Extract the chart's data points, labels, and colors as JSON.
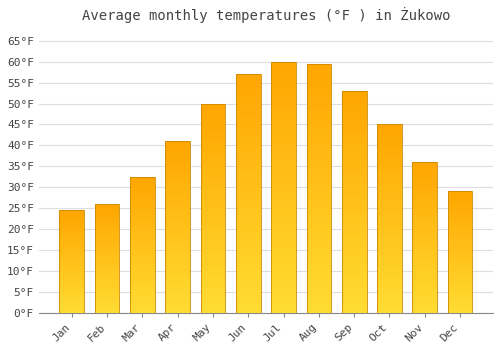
{
  "title": "Average monthly temperatures (°F ) in Żukowo",
  "months": [
    "Jan",
    "Feb",
    "Mar",
    "Apr",
    "May",
    "Jun",
    "Jul",
    "Aug",
    "Sep",
    "Oct",
    "Nov",
    "Dec"
  ],
  "values": [
    24.5,
    26.0,
    32.5,
    41.0,
    50.0,
    57.0,
    60.0,
    59.5,
    53.0,
    45.0,
    36.0,
    29.0
  ],
  "bar_color_top": "#FFA500",
  "bar_color_bottom": "#FFD060",
  "bar_edge_color": "#CC8800",
  "background_color": "#FFFFFF",
  "plot_bg_color": "#FFFFFF",
  "grid_color": "#DDDDDD",
  "ylim": [
    0,
    68
  ],
  "title_fontsize": 10,
  "tick_fontsize": 8,
  "font_color": "#444444",
  "ylabel_ticks": [
    0,
    5,
    10,
    15,
    20,
    25,
    30,
    35,
    40,
    45,
    50,
    55,
    60,
    65
  ]
}
